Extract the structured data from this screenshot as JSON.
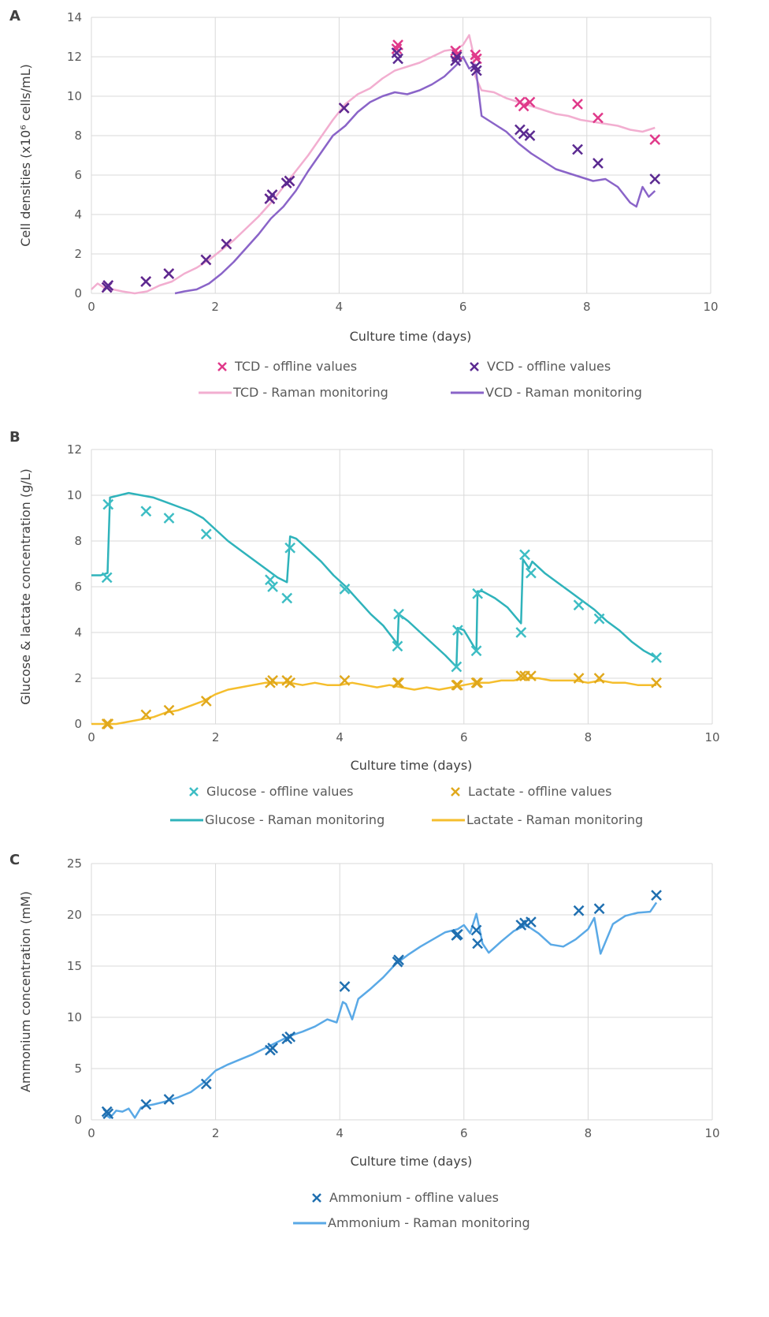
{
  "chart_data": [
    {
      "panel": "A",
      "type": "line",
      "xlabel": "Culture time (days)",
      "ylabel": "Cell densities (x10⁶ cells/mL)",
      "xlim": [
        0,
        10
      ],
      "ylim": [
        0,
        14
      ],
      "xticks": [
        0,
        2,
        4,
        6,
        8,
        10
      ],
      "yticks": [
        0,
        2,
        4,
        6,
        8,
        10,
        12,
        14
      ],
      "grid": true,
      "legend_position": "bottom",
      "series": [
        {
          "name": "TCD - offline values",
          "kind": "scatter",
          "color": "#e0398a",
          "x": [
            0.25,
            0.27,
            0.88,
            1.25,
            1.85,
            2.18,
            2.88,
            2.92,
            3.15,
            3.2,
            4.08,
            4.93,
            4.95,
            5.88,
            5.9,
            6.2,
            6.22,
            6.92,
            6.98,
            7.08,
            7.85,
            8.18,
            9.1
          ],
          "y": [
            0.3,
            0.4,
            0.6,
            1.0,
            1.7,
            2.5,
            4.8,
            5.0,
            5.6,
            5.7,
            9.4,
            12.4,
            12.6,
            12.3,
            12.1,
            12.1,
            11.9,
            9.7,
            9.5,
            9.7,
            9.6,
            8.9,
            7.8
          ]
        },
        {
          "name": "VCD - offline values",
          "kind": "scatter",
          "color": "#5b2a91",
          "x": [
            0.25,
            0.27,
            0.88,
            1.25,
            1.85,
            2.18,
            2.88,
            2.92,
            3.15,
            3.2,
            4.08,
            4.93,
            4.95,
            5.88,
            5.9,
            6.2,
            6.22,
            6.92,
            6.98,
            7.08,
            7.85,
            8.18,
            9.1
          ],
          "y": [
            0.3,
            0.4,
            0.6,
            1.0,
            1.7,
            2.5,
            4.8,
            5.0,
            5.6,
            5.7,
            9.4,
            12.2,
            11.9,
            11.8,
            12.0,
            11.5,
            11.3,
            8.3,
            8.1,
            8.0,
            7.3,
            6.6,
            5.8
          ]
        },
        {
          "name": "TCD - Raman monitoring",
          "kind": "line",
          "color": "#f2aed0",
          "x": [
            0,
            0.1,
            0.2,
            0.35,
            0.5,
            0.7,
            0.9,
            1.1,
            1.3,
            1.5,
            1.7,
            1.9,
            2.1,
            2.3,
            2.5,
            2.7,
            2.9,
            3.1,
            3.3,
            3.5,
            3.7,
            3.9,
            4.1,
            4.3,
            4.5,
            4.7,
            4.9,
            5.1,
            5.3,
            5.5,
            5.7,
            5.9,
            6.0,
            6.1,
            6.15,
            6.2,
            6.3,
            6.5,
            6.7,
            6.9,
            7.1,
            7.3,
            7.5,
            7.7,
            7.9,
            8.1,
            8.3,
            8.5,
            8.7,
            8.9,
            9.1
          ],
          "y": [
            0.2,
            0.5,
            0.3,
            0.2,
            0.1,
            0.0,
            0.1,
            0.4,
            0.6,
            1.0,
            1.3,
            1.7,
            2.2,
            2.7,
            3.3,
            3.9,
            4.6,
            5.4,
            6.2,
            7.0,
            7.9,
            8.8,
            9.6,
            10.1,
            10.4,
            10.9,
            11.3,
            11.5,
            11.7,
            12.0,
            12.3,
            12.4,
            12.6,
            13.1,
            12.4,
            11.0,
            10.3,
            10.2,
            9.9,
            9.7,
            9.5,
            9.3,
            9.1,
            9.0,
            8.8,
            8.7,
            8.6,
            8.5,
            8.3,
            8.2,
            8.4
          ]
        },
        {
          "name": "VCD - Raman monitoring",
          "kind": "line",
          "color": "#8a64c8",
          "x": [
            1.35,
            1.5,
            1.7,
            1.9,
            2.1,
            2.3,
            2.5,
            2.7,
            2.9,
            3.1,
            3.3,
            3.5,
            3.7,
            3.9,
            4.1,
            4.3,
            4.5,
            4.7,
            4.9,
            5.1,
            5.3,
            5.5,
            5.7,
            5.9,
            6.0,
            6.1,
            6.2,
            6.3,
            6.5,
            6.7,
            6.9,
            7.1,
            7.3,
            7.5,
            7.7,
            7.9,
            8.1,
            8.3,
            8.5,
            8.7,
            8.8,
            8.9,
            9.0,
            9.1
          ],
          "y": [
            0.0,
            0.1,
            0.2,
            0.5,
            1.0,
            1.6,
            2.3,
            3.0,
            3.8,
            4.4,
            5.2,
            6.2,
            7.1,
            8.0,
            8.5,
            9.2,
            9.7,
            10.0,
            10.2,
            10.1,
            10.3,
            10.6,
            11.0,
            11.6,
            12.0,
            11.4,
            11.6,
            9.0,
            8.6,
            8.2,
            7.6,
            7.1,
            6.7,
            6.3,
            6.1,
            5.9,
            5.7,
            5.8,
            5.4,
            4.6,
            4.4,
            5.4,
            4.9,
            5.2
          ]
        }
      ]
    },
    {
      "panel": "B",
      "type": "line",
      "xlabel": "Culture time (days)",
      "ylabel": "Glucose & lactate concentration (g/L)",
      "xlim": [
        0,
        10
      ],
      "ylim": [
        0,
        12
      ],
      "xticks": [
        0,
        2,
        4,
        6,
        8,
        10
      ],
      "yticks": [
        0,
        2,
        4,
        6,
        8,
        10,
        12
      ],
      "grid": true,
      "legend_position": "bottom",
      "series": [
        {
          "name": "Glucose - offline values",
          "kind": "scatter",
          "color": "#3dbdc4",
          "x": [
            0.25,
            0.27,
            0.88,
            1.25,
            1.85,
            2.88,
            2.92,
            3.15,
            3.2,
            4.08,
            4.93,
            4.95,
            5.88,
            5.9,
            6.2,
            6.22,
            6.92,
            6.98,
            7.08,
            7.85,
            8.18,
            9.1
          ],
          "y": [
            6.4,
            9.6,
            9.3,
            9.0,
            8.3,
            6.3,
            6.0,
            5.5,
            7.7,
            5.9,
            3.4,
            4.8,
            2.5,
            4.1,
            3.2,
            5.7,
            4.0,
            7.4,
            6.6,
            5.2,
            4.6,
            2.9
          ]
        },
        {
          "name": "Lactate - offline values",
          "kind": "scatter",
          "color": "#e0a81c",
          "x": [
            0.25,
            0.27,
            0.88,
            1.25,
            1.85,
            2.88,
            2.92,
            3.15,
            3.2,
            4.08,
            4.93,
            4.95,
            5.88,
            5.9,
            6.2,
            6.22,
            6.92,
            6.98,
            7.08,
            7.85,
            8.18,
            9.1
          ],
          "y": [
            0.0,
            0.0,
            0.4,
            0.6,
            1.0,
            1.8,
            1.9,
            1.9,
            1.8,
            1.9,
            1.8,
            1.8,
            1.7,
            1.7,
            1.8,
            1.8,
            2.1,
            2.1,
            2.1,
            2.0,
            2.0,
            1.8
          ]
        },
        {
          "name": "Glucose - Raman monitoring",
          "kind": "line",
          "color": "#2fb3bb",
          "x": [
            0,
            0.15,
            0.26,
            0.3,
            0.45,
            0.6,
            0.8,
            1.0,
            1.2,
            1.4,
            1.6,
            1.8,
            2.0,
            2.2,
            2.4,
            2.6,
            2.8,
            3.0,
            3.15,
            3.2,
            3.3,
            3.5,
            3.7,
            3.9,
            4.1,
            4.3,
            4.5,
            4.7,
            4.9,
            4.93,
            4.95,
            5.1,
            5.3,
            5.5,
            5.7,
            5.88,
            5.9,
            6.0,
            6.2,
            6.22,
            6.3,
            6.5,
            6.7,
            6.92,
            6.95,
            7.05,
            7.1,
            7.3,
            7.5,
            7.7,
            7.9,
            8.1,
            8.3,
            8.5,
            8.7,
            8.9,
            9.1
          ],
          "y": [
            6.5,
            6.5,
            6.6,
            9.9,
            10.0,
            10.1,
            10.0,
            9.9,
            9.7,
            9.5,
            9.3,
            9.0,
            8.5,
            8.0,
            7.6,
            7.2,
            6.8,
            6.4,
            6.2,
            8.2,
            8.1,
            7.6,
            7.1,
            6.5,
            6.0,
            5.4,
            4.8,
            4.3,
            3.6,
            3.4,
            4.8,
            4.5,
            4.0,
            3.5,
            3.0,
            2.5,
            4.2,
            4.1,
            3.2,
            5.8,
            5.8,
            5.5,
            5.1,
            4.4,
            7.2,
            6.8,
            7.1,
            6.6,
            6.2,
            5.8,
            5.4,
            5.0,
            4.5,
            4.1,
            3.6,
            3.2,
            2.9
          ]
        },
        {
          "name": "Lactate - Raman monitoring",
          "kind": "line",
          "color": "#f5be2d",
          "x": [
            0,
            0.2,
            0.4,
            0.6,
            0.8,
            1.0,
            1.2,
            1.4,
            1.6,
            1.8,
            2.0,
            2.2,
            2.4,
            2.6,
            2.8,
            3.0,
            3.2,
            3.4,
            3.6,
            3.8,
            4.0,
            4.2,
            4.4,
            4.6,
            4.8,
            5.0,
            5.2,
            5.4,
            5.6,
            5.8,
            6.0,
            6.2,
            6.4,
            6.6,
            6.8,
            7.0,
            7.2,
            7.4,
            7.6,
            7.8,
            8.0,
            8.2,
            8.4,
            8.6,
            8.8,
            9.0,
            9.1
          ],
          "y": [
            0.0,
            0.0,
            0.0,
            0.1,
            0.2,
            0.3,
            0.5,
            0.6,
            0.8,
            1.0,
            1.3,
            1.5,
            1.6,
            1.7,
            1.8,
            1.8,
            1.8,
            1.7,
            1.8,
            1.7,
            1.7,
            1.8,
            1.7,
            1.6,
            1.7,
            1.6,
            1.5,
            1.6,
            1.5,
            1.6,
            1.7,
            1.8,
            1.8,
            1.9,
            1.9,
            2.0,
            2.0,
            1.9,
            1.9,
            1.9,
            1.8,
            1.9,
            1.8,
            1.8,
            1.7,
            1.7,
            1.7
          ]
        }
      ]
    },
    {
      "panel": "C",
      "type": "line",
      "xlabel": "Culture time (days)",
      "ylabel": "Ammonium concentration (mM)",
      "xlim": [
        0,
        10
      ],
      "ylim": [
        0,
        25
      ],
      "xticks": [
        0,
        2,
        4,
        6,
        8,
        10
      ],
      "yticks": [
        0,
        5,
        10,
        15,
        20,
        25
      ],
      "grid": true,
      "legend_position": "bottom",
      "series": [
        {
          "name": "Ammonium - offline values",
          "kind": "scatter",
          "color": "#1f6fb0",
          "x": [
            0.25,
            0.27,
            0.88,
            1.25,
            1.85,
            2.88,
            2.92,
            3.15,
            3.2,
            4.08,
            4.93,
            4.95,
            5.88,
            5.9,
            6.2,
            6.22,
            6.92,
            6.98,
            7.08,
            7.85,
            8.18,
            9.1
          ],
          "y": [
            0.8,
            0.6,
            1.5,
            2.0,
            3.5,
            6.8,
            7.0,
            7.9,
            8.1,
            13.0,
            15.4,
            15.6,
            18.0,
            18.1,
            18.5,
            17.2,
            19.0,
            19.2,
            19.3,
            20.4,
            20.6,
            21.9
          ]
        },
        {
          "name": "Ammonium - Raman monitoring",
          "kind": "line",
          "color": "#5aa9e6",
          "x": [
            0.2,
            0.3,
            0.4,
            0.5,
            0.6,
            0.7,
            0.8,
            0.9,
            1.0,
            1.2,
            1.4,
            1.6,
            1.8,
            2.0,
            2.2,
            2.4,
            2.6,
            2.8,
            3.0,
            3.2,
            3.4,
            3.6,
            3.8,
            3.95,
            4.05,
            4.1,
            4.2,
            4.3,
            4.5,
            4.7,
            4.9,
            5.1,
            5.3,
            5.5,
            5.7,
            5.9,
            6.0,
            6.1,
            6.2,
            6.3,
            6.4,
            6.6,
            6.8,
            7.0,
            7.2,
            7.4,
            7.6,
            7.8,
            8.0,
            8.1,
            8.2,
            8.4,
            8.6,
            8.8,
            9.0,
            9.1
          ],
          "y": [
            0.6,
            0.2,
            0.9,
            0.8,
            1.1,
            0.2,
            1.2,
            1.4,
            1.5,
            1.8,
            2.2,
            2.7,
            3.6,
            4.8,
            5.4,
            5.9,
            6.4,
            7.0,
            7.6,
            8.2,
            8.6,
            9.1,
            9.8,
            9.5,
            11.5,
            11.3,
            9.8,
            11.8,
            12.8,
            13.9,
            15.2,
            16.1,
            16.9,
            17.6,
            18.3,
            18.6,
            19.0,
            18.2,
            20.1,
            17.2,
            16.3,
            17.4,
            18.4,
            19.0,
            18.2,
            17.1,
            16.9,
            17.6,
            18.6,
            19.7,
            16.2,
            19.1,
            19.9,
            20.2,
            20.3,
            21.2
          ]
        }
      ]
    }
  ]
}
